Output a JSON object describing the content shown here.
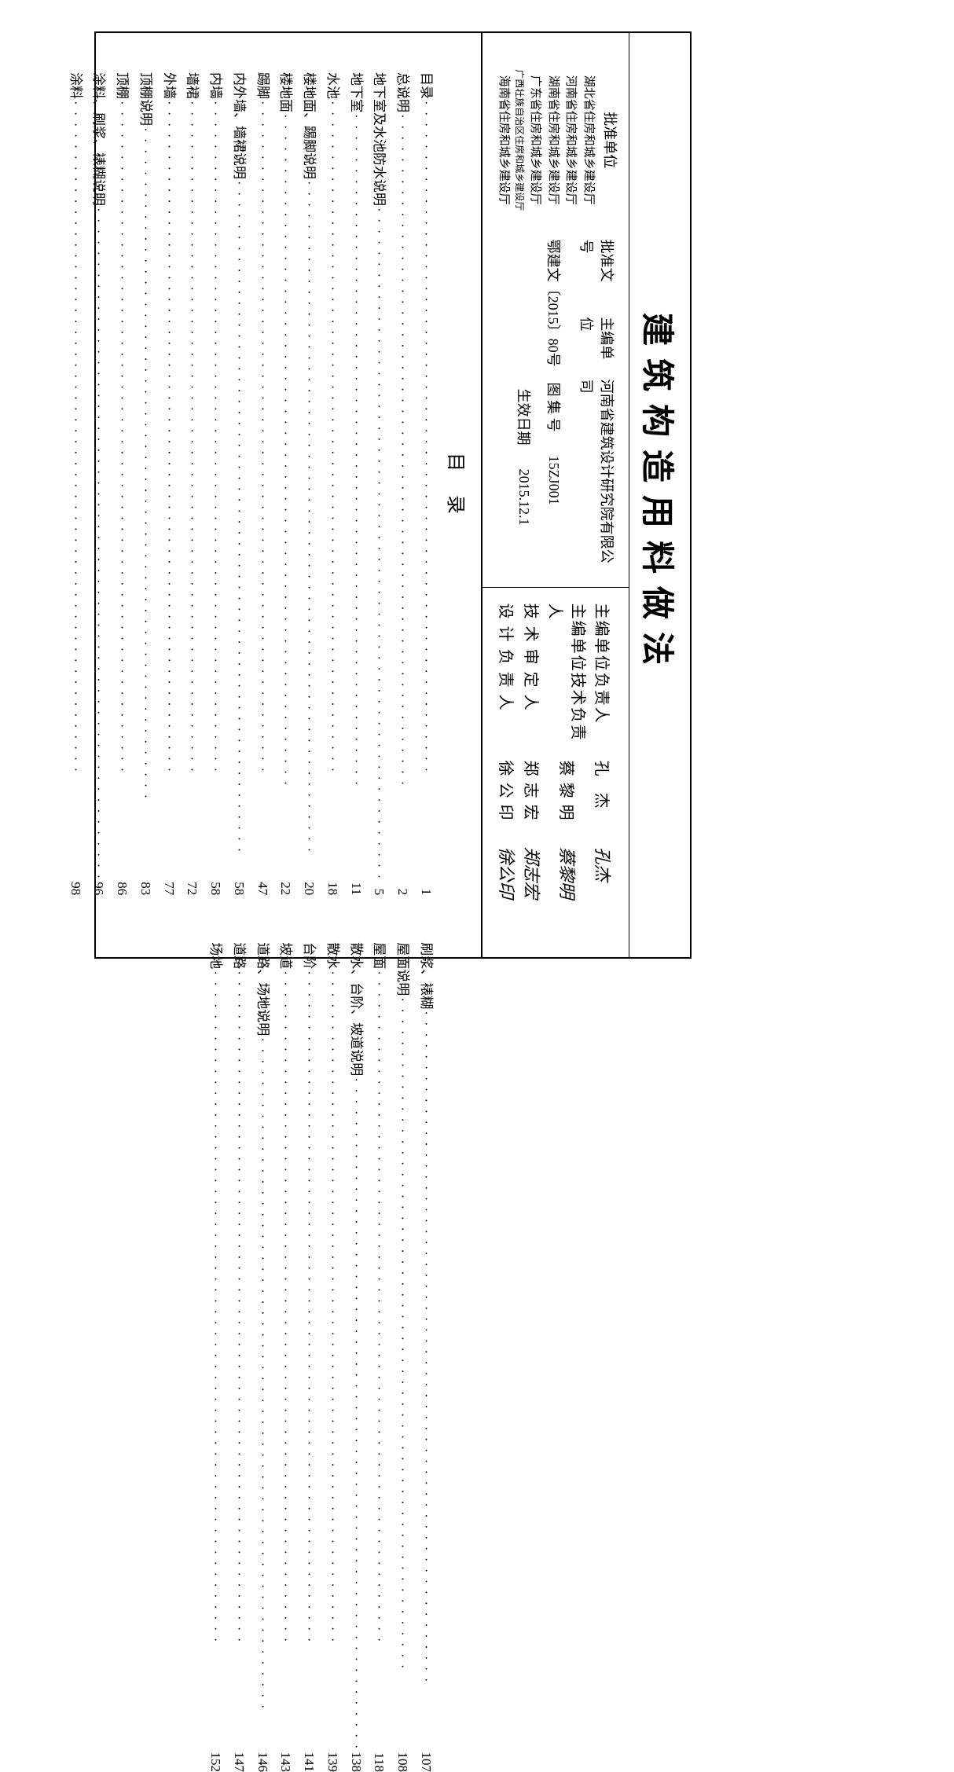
{
  "title": "建筑构造用料做法",
  "info": {
    "approval_doc_label": "批准文号",
    "main_editor_label": "主编单位",
    "main_editor_value": "河南省建筑设计研究院有限公司",
    "approval_doc_value": "鄂建文〔2015〕80号",
    "atlas_no_label": "图 集 号",
    "atlas_no_value": "15ZJ001",
    "effective_date_label": "生效日期",
    "effective_date_value": "2015.12.1"
  },
  "approval_units": {
    "title": "批准单位",
    "items": [
      "湖北省住房和城乡建设厅",
      "河南省住房和城乡建设厅",
      "湖南省住房和城乡建设厅",
      "广东省住房和城乡建设厅",
      "广西壮族自治区住房和城乡建设厅",
      "海南省住房和城乡建设厅"
    ]
  },
  "persons": [
    {
      "label": "主编单位负责人",
      "name": "孔 杰",
      "signature": "孔杰",
      "spaced": false
    },
    {
      "label": "主编单位技术负责人",
      "name": "蔡黎明",
      "signature": "蔡黎明",
      "spaced": false
    },
    {
      "label": "技 术 审 定 人",
      "name": "郑志宏",
      "signature": "郑志宏",
      "spaced": false
    },
    {
      "label": "设 计 负 责 人",
      "name": "徐公印",
      "signature": "徐公印",
      "spaced": false
    }
  ],
  "toc_title": "目录",
  "toc_left": [
    {
      "label": "目录",
      "page": "1"
    },
    {
      "label": "总说明",
      "page": "2"
    },
    {
      "label": "地下室及水池防水说明",
      "page": "5"
    },
    {
      "label": "地下室",
      "page": "11"
    },
    {
      "label": "水池",
      "page": "18"
    },
    {
      "label": "楼地面、踢脚说明",
      "page": "20"
    },
    {
      "label": "楼地面",
      "page": "22"
    },
    {
      "label": "踢脚",
      "page": "47"
    },
    {
      "label": "内外墙、墙裙说明",
      "page": "58"
    },
    {
      "label": "内墙",
      "page": "58"
    },
    {
      "label": "墙裙",
      "page": "72"
    },
    {
      "label": "外墙",
      "page": "77"
    },
    {
      "label": "顶棚说明",
      "page": "83"
    },
    {
      "label": "顶棚",
      "page": "86"
    },
    {
      "label": "涂料、刷浆、裱糊说明",
      "page": "96"
    },
    {
      "label": "涂料",
      "page": "98"
    }
  ],
  "toc_right": [
    {
      "label": "刷浆、裱糊",
      "page": "107"
    },
    {
      "label": "屋面说明",
      "page": "108"
    },
    {
      "label": "屋面",
      "page": "118"
    },
    {
      "label": "散水、台阶、坡道说明",
      "page": "138"
    },
    {
      "label": "散水",
      "page": "139"
    },
    {
      "label": "台阶",
      "page": "141"
    },
    {
      "label": "坡道",
      "page": "143"
    },
    {
      "label": "道路、场地说明",
      "page": "146"
    },
    {
      "label": "道路",
      "page": "147"
    },
    {
      "label": "场地",
      "page": "152"
    }
  ],
  "dots": "· · · · · · · · · · · · · · · · · · · · · · · · · · · · · · · · · · · · · · · · · · · · · · · · · · · · · · · · · · · · · ·"
}
